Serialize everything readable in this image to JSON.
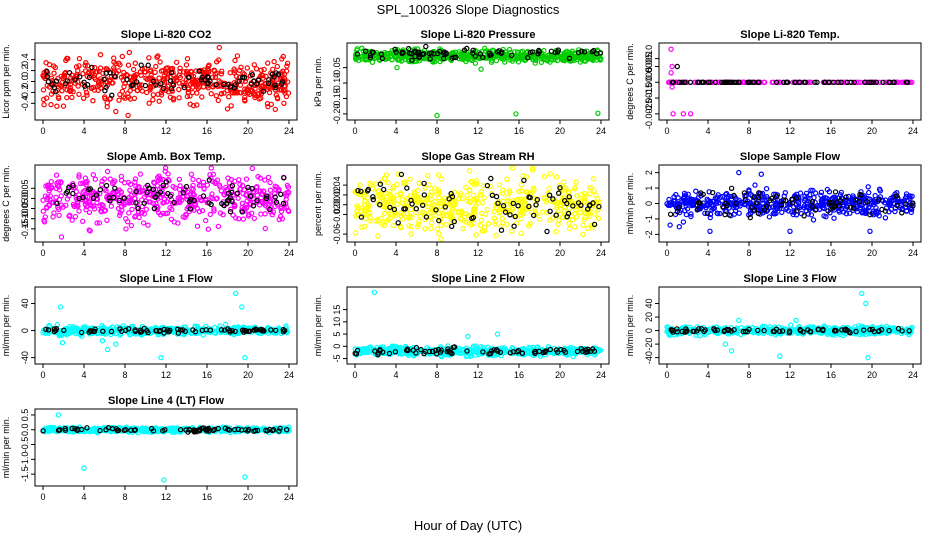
{
  "figure": {
    "title": "SPL_100326  Slope Diagnostics",
    "xlabel": "Hour of Day (UTC)"
  },
  "chart_data": [
    {
      "type": "scatter",
      "title": "Slope Li-820 CO2",
      "ylabel": "Licor ppm per min.",
      "xlim": [
        0,
        24
      ],
      "xticks": [
        0,
        4,
        8,
        12,
        16,
        20,
        24
      ],
      "ylim": [
        -0.65,
        0.65
      ],
      "yticks": [
        -0.4,
        -0.2,
        0.0,
        0.2,
        0.4
      ],
      "ytick_labels": [
        "-0.4",
        "-0.2",
        "0.0",
        "0.2",
        "0.4"
      ],
      "grid": false,
      "series": [
        {
          "color": "#ff0000",
          "points": {
            "n": 520,
            "center": 0.0,
            "spread": 0.2,
            "outliers": [
              [
                7.1,
                -0.55
              ],
              [
                8.3,
                -0.62
              ],
              [
                17.2,
                0.62
              ],
              [
                2.0,
                -0.45
              ],
              [
                23.5,
                -0.4
              ]
            ]
          }
        },
        {
          "color": "#000000",
          "points": {
            "n": 75,
            "center": 0.0,
            "spread": 0.12,
            "outliers": []
          }
        }
      ]
    },
    {
      "type": "scatter",
      "title": "Slope Li-820 Pressure",
      "ylabel": "kPa per min.",
      "xlim": [
        0,
        24
      ],
      "xticks": [
        0,
        4,
        8,
        12,
        16,
        20,
        24
      ],
      "ylim": [
        -0.21,
        0.02
      ],
      "yticks": [
        -0.2,
        -0.15,
        -0.1,
        -0.05
      ],
      "ytick_labels": [
        "-0.20",
        "-0.15",
        "-0.10",
        "-0.05"
      ],
      "grid": false,
      "series": [
        {
          "color": "#00cc00",
          "points": {
            "n": 500,
            "center": -0.012,
            "spread": 0.01,
            "outliers": [
              [
                4.1,
                -0.05
              ],
              [
                8.0,
                -0.205
              ],
              [
                12.3,
                -0.055
              ],
              [
                15.7,
                -0.2
              ],
              [
                23.7,
                -0.198
              ]
            ]
          }
        },
        {
          "color": "#000000",
          "points": {
            "n": 75,
            "center": -0.005,
            "spread": 0.008,
            "outliers": []
          }
        }
      ]
    },
    {
      "type": "scatter",
      "title": "Slope Li-820 Temp.",
      "ylabel": "degrees C per min.",
      "xlim": [
        0,
        24
      ],
      "xticks": [
        0,
        4,
        8,
        12,
        16,
        20,
        24
      ],
      "ylim": [
        -0.0027,
        0.0018
      ],
      "yticks": [
        -0.0025,
        -0.0015,
        -0.0005,
        0.0005,
        0.001
      ],
      "ytick_labels": [
        "-0.0025",
        "-0.0015",
        "-0.0005",
        "0.0005",
        "0.0010"
      ],
      "grid": false,
      "series": [
        {
          "color": "#ff00ff",
          "points": {
            "n": 130,
            "center": -0.0005,
            "spread": 0.0,
            "outliers": [
              [
                0.4,
                0.0016
              ],
              [
                0.5,
                0.0005
              ],
              [
                0.4,
                0.0001
              ],
              [
                0.6,
                -0.0025
              ],
              [
                1.6,
                -0.0025
              ],
              [
                2.3,
                -0.0025
              ],
              [
                0.5,
                -0.0008
              ]
            ]
          }
        },
        {
          "color": "#000000",
          "points": {
            "n": 75,
            "center": -0.0005,
            "spread": 0.0,
            "outliers": [
              [
                1.0,
                0.0005
              ],
              [
                1.2,
                -0.0005
              ]
            ]
          }
        }
      ]
    },
    {
      "type": "scatter",
      "title": "Slope Amb. Box Temp.",
      "ylabel": "degrees C per min.",
      "xlim": [
        0,
        24
      ],
      "xticks": [
        0,
        4,
        8,
        12,
        16,
        20,
        24
      ],
      "ylim": [
        -0.2,
        0.15
      ],
      "yticks": [
        -0.15,
        -0.1,
        -0.05,
        0.0,
        0.05
      ],
      "ytick_labels": [
        "-0.15",
        "-0.10",
        "-0.05",
        "0.00",
        "0.05"
      ],
      "grid": false,
      "series": [
        {
          "color": "#ff00ff",
          "points": {
            "n": 520,
            "center": 0.0,
            "spread": 0.06,
            "outliers": [
              [
                1.8,
                -0.19
              ],
              [
                4.6,
                -0.16
              ],
              [
                9.5,
                0.12
              ],
              [
                8.1,
                -0.15
              ]
            ]
          }
        },
        {
          "color": "#000000",
          "points": {
            "n": 75,
            "center": 0.01,
            "spread": 0.04,
            "outliers": []
          }
        }
      ]
    },
    {
      "type": "scatter",
      "title": "Slope Gas Stream RH",
      "ylabel": "percent per min.",
      "xlim": [
        0,
        24
      ],
      "xticks": [
        0,
        4,
        8,
        12,
        16,
        20,
        24
      ],
      "ylim": [
        -0.07,
        0.075
      ],
      "yticks": [
        -0.06,
        -0.02,
        0.0,
        0.02,
        0.04
      ],
      "ytick_labels": [
        "-0.06",
        "-0.02",
        "0.00",
        "0.02",
        "0.04"
      ],
      "grid": false,
      "series": [
        {
          "color": "#ffff00",
          "points": {
            "n": 500,
            "center": 0.0,
            "spread": 0.028,
            "outliers": []
          }
        },
        {
          "color": "#000000",
          "points": {
            "n": 75,
            "center": 0.0,
            "spread": 0.025,
            "outliers": []
          }
        }
      ]
    },
    {
      "type": "scatter",
      "title": "Slope Sample Flow",
      "ylabel": "ml/min per min.",
      "xlim": [
        0,
        24
      ],
      "xticks": [
        0,
        4,
        8,
        12,
        16,
        20,
        24
      ],
      "ylim": [
        -2.3,
        2.3
      ],
      "yticks": [
        -2,
        -1,
        0,
        1,
        2
      ],
      "ytick_labels": [
        "-2",
        "-1",
        "0",
        "1",
        "2"
      ],
      "grid": false,
      "series": [
        {
          "color": "#0000ff",
          "points": {
            "n": 500,
            "center": 0.0,
            "spread": 0.4,
            "outliers": [
              [
                0.3,
                -1.4
              ],
              [
                1.2,
                -1.5
              ],
              [
                1.6,
                -1.2
              ],
              [
                4.2,
                -1.8
              ],
              [
                7.0,
                2.0
              ],
              [
                9.2,
                1.9
              ],
              [
                12.0,
                -1.8
              ],
              [
                19.8,
                -1.8
              ]
            ]
          }
        },
        {
          "color": "#000000",
          "points": {
            "n": 75,
            "center": 0.0,
            "spread": 0.4,
            "outliers": []
          }
        }
      ]
    },
    {
      "type": "scatter",
      "title": "Slope Line 1 Flow",
      "ylabel": "ml/min per min.",
      "xlim": [
        0,
        24
      ],
      "xticks": [
        0,
        4,
        8,
        12,
        16,
        20,
        24
      ],
      "ylim": [
        -45,
        60
      ],
      "yticks": [
        -40,
        0,
        40
      ],
      "ytick_labels": [
        "-40",
        "0",
        "40"
      ],
      "grid": false,
      "series": [
        {
          "color": "#00ffff",
          "points": {
            "n": 500,
            "center": 0.0,
            "spread": 3.0,
            "outliers": [
              [
                1.7,
                35
              ],
              [
                1.9,
                -18
              ],
              [
                5.8,
                -15
              ],
              [
                6.3,
                -28
              ],
              [
                7.1,
                -20
              ],
              [
                11.5,
                -40
              ],
              [
                18.8,
                55
              ],
              [
                19.4,
                35
              ],
              [
                19.7,
                -40
              ]
            ]
          }
        },
        {
          "color": "#000000",
          "points": {
            "n": 75,
            "center": 0.0,
            "spread": 1.5,
            "outliers": []
          }
        }
      ]
    },
    {
      "type": "scatter",
      "title": "Slope Line 2 Flow",
      "ylabel": "ml/min per min.",
      "xlim": [
        0,
        24
      ],
      "xticks": [
        0,
        4,
        8,
        12,
        16,
        20,
        24
      ],
      "ylim": [
        -6,
        23
      ],
      "yticks": [
        -5,
        0,
        5,
        10,
        15
      ],
      "ytick_labels": [
        "-5",
        "0",
        "5",
        "10",
        "15"
      ],
      "grid": false,
      "series": [
        {
          "color": "#00ffff",
          "points": {
            "n": 500,
            "center": -2.0,
            "spread": 0.9,
            "outliers": [
              [
                1.9,
                22
              ],
              [
                11.0,
                4
              ],
              [
                13.9,
                5
              ],
              [
                13.8,
                -3
              ]
            ]
          }
        },
        {
          "color": "#000000",
          "points": {
            "n": 75,
            "center": -2.0,
            "spread": 0.6,
            "outliers": []
          }
        }
      ]
    },
    {
      "type": "scatter",
      "title": "Slope Line 3 Flow",
      "ylabel": "ml/min per min.",
      "xlim": [
        0,
        24
      ],
      "xticks": [
        0,
        4,
        8,
        12,
        16,
        20,
        24
      ],
      "ylim": [
        -45,
        60
      ],
      "yticks": [
        -40,
        -20,
        0,
        20,
        40
      ],
      "ytick_labels": [
        "-40",
        "-20",
        "0",
        "20",
        "40"
      ],
      "grid": false,
      "series": [
        {
          "color": "#00ffff",
          "points": {
            "n": 500,
            "center": 0.0,
            "spread": 3.0,
            "outliers": [
              [
                5.7,
                -20
              ],
              [
                6.3,
                -30
              ],
              [
                7.0,
                15
              ],
              [
                11.0,
                -38
              ],
              [
                12.6,
                15
              ],
              [
                19.0,
                55
              ],
              [
                19.4,
                40
              ],
              [
                19.6,
                -40
              ]
            ]
          }
        },
        {
          "color": "#000000",
          "points": {
            "n": 75,
            "center": 0.0,
            "spread": 1.5,
            "outliers": []
          }
        }
      ]
    },
    {
      "type": "scatter",
      "title": "Slope Line 4 (LT) Flow",
      "ylabel": "ml/min per min.",
      "xlim": [
        0,
        24
      ],
      "xticks": [
        0,
        4,
        8,
        12,
        16,
        20,
        24
      ],
      "ylim": [
        -1.8,
        0.6
      ],
      "yticks": [
        -1.5,
        -1.0,
        -0.5,
        0.0,
        0.5
      ],
      "ytick_labels": [
        "-1.5",
        "-1.0",
        "-0.5",
        "0.0",
        "0.5"
      ],
      "grid": false,
      "series": [
        {
          "color": "#00ffff",
          "points": {
            "n": 500,
            "center": 0.0,
            "spread": 0.04,
            "outliers": [
              [
                1.5,
                0.5
              ],
              [
                4.0,
                -1.3
              ],
              [
                11.8,
                -1.7
              ],
              [
                19.7,
                -1.6
              ]
            ]
          }
        },
        {
          "color": "#000000",
          "points": {
            "n": 75,
            "center": 0.0,
            "spread": 0.03,
            "outliers": []
          }
        }
      ]
    }
  ]
}
